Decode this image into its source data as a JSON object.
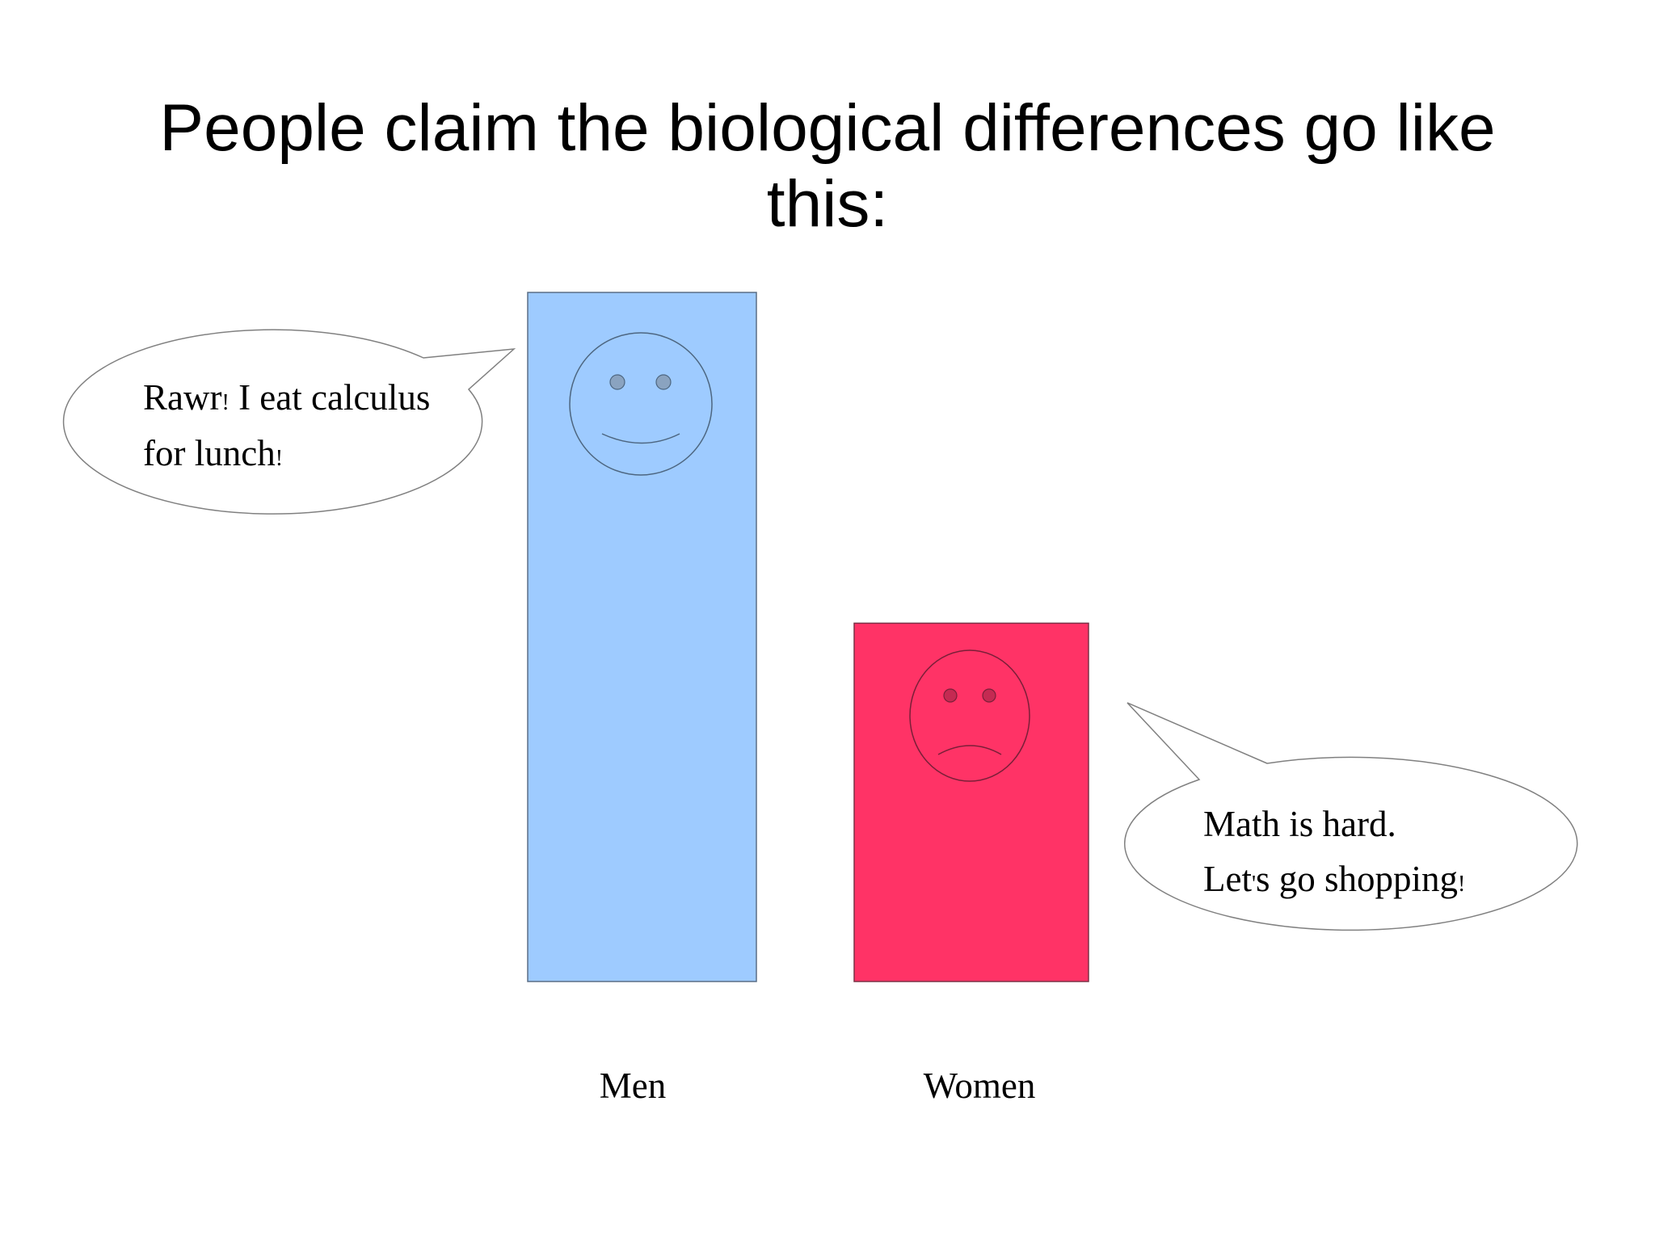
{
  "title": {
    "line1": "People claim the biological differences go like",
    "line2": "this:"
  },
  "colors": {
    "men": "#9ecbff",
    "women": "#ff3366",
    "outline": "#3c3c3c"
  },
  "chart_data": {
    "type": "bar",
    "title": "People claim the biological differences go like this:",
    "categories": [
      "Men",
      "Women"
    ],
    "values": [
      1.0,
      0.52
    ],
    "ylim": [
      0,
      1
    ],
    "xlabel": "",
    "ylabel": "",
    "grid": false,
    "annotations": [
      {
        "category": "Men",
        "face": "smiley-face",
        "speech": [
          "Rawr",
          "!",
          " I eat calculus",
          "for lunch",
          "!"
        ]
      },
      {
        "category": "Women",
        "face": "frowny-face",
        "speech": [
          "Math is hard.",
          "Let",
          "'",
          "s go shopping",
          "!"
        ]
      }
    ]
  }
}
